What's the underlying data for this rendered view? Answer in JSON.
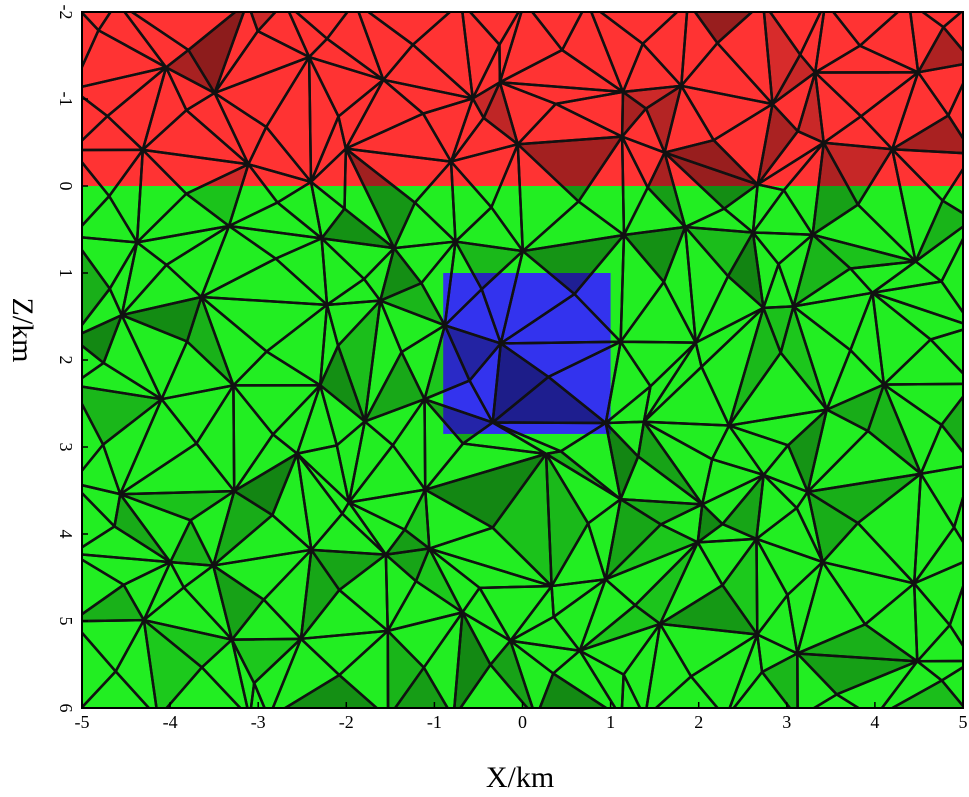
{
  "chart_data": {
    "type": "mesh",
    "xlabel": "X/km",
    "ylabel": "Z/km",
    "xlim": [
      -5,
      5
    ],
    "ylim": [
      -2,
      6
    ],
    "y_inverted": true,
    "xticks": [
      -5,
      -4,
      -3,
      -2,
      -1,
      0,
      1,
      2,
      3,
      4,
      5
    ],
    "yticks": [
      -2,
      -1,
      0,
      1,
      2,
      3,
      4,
      5,
      6
    ],
    "regions": [
      {
        "color": "#ff3333",
        "x": [
          -5,
          5
        ],
        "y": [
          -2,
          0
        ]
      },
      {
        "color": "#22ee22",
        "x": [
          -5,
          5
        ],
        "y": [
          0,
          6
        ]
      },
      {
        "color": "#3333ee",
        "x": [
          -0.9,
          1.0
        ],
        "y": [
          1,
          2.85
        ]
      }
    ]
  }
}
